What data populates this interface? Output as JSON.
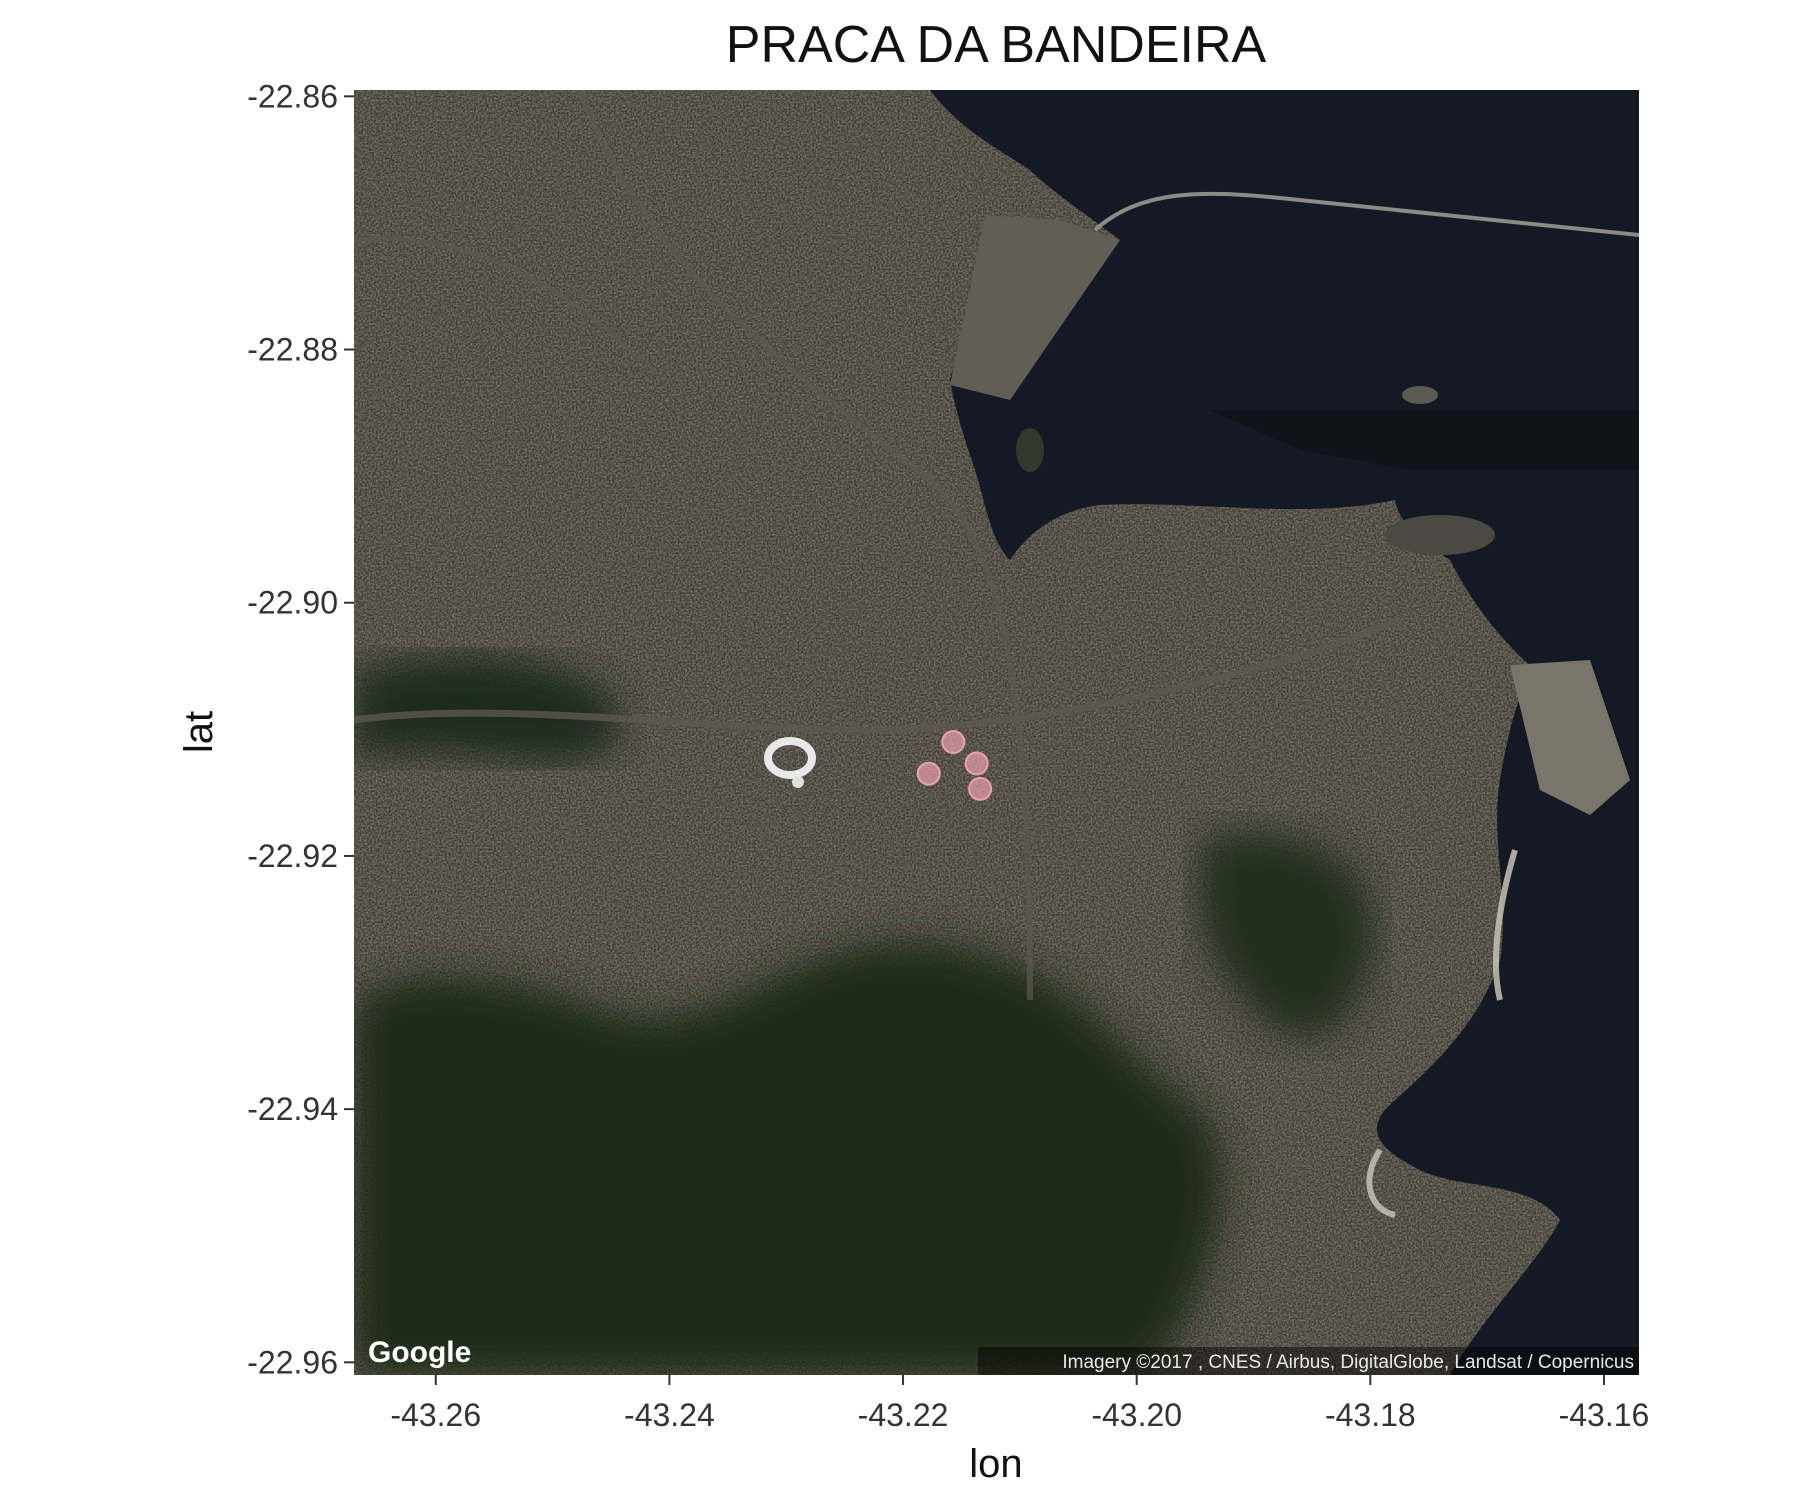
{
  "chart_data": {
    "type": "scatter",
    "title": "PRACA DA BANDEIRA",
    "xlabel": "lon",
    "ylabel": "lat",
    "xlim": [
      -43.267,
      -43.157
    ],
    "ylim": [
      -22.961,
      -22.8595
    ],
    "x_ticks": [
      -43.26,
      -43.24,
      -43.22,
      -43.2,
      -43.18,
      -43.16
    ],
    "y_ticks": [
      -22.86,
      -22.88,
      -22.9,
      -22.92,
      -22.94,
      -22.96
    ],
    "x_tick_labels": [
      "-43.26",
      "-43.24",
      "-43.22",
      "-43.20",
      "-43.18",
      "-43.16"
    ],
    "y_tick_labels": [
      "-22.86",
      "-22.88",
      "-22.90",
      "-22.92",
      "-22.94",
      "-22.96"
    ],
    "points": [
      {
        "lon": -43.2157,
        "lat": -22.911
      },
      {
        "lon": -43.2137,
        "lat": -22.9127
      },
      {
        "lon": -43.2178,
        "lat": -22.9135
      },
      {
        "lon": -43.2134,
        "lat": -22.9147
      }
    ],
    "point_color": "#f4a6b8",
    "basemap": "satellite",
    "colors": {
      "land": "#3f3b33",
      "urban": "#6b655c",
      "forest": "#1c2a19",
      "water": "#141a24"
    },
    "grid": false,
    "legend": "none"
  },
  "map": {
    "logo": "Google",
    "attribution": "Imagery ©2017 , CNES / Airbus, DigitalGlobe, Landsat / Copernicus"
  }
}
